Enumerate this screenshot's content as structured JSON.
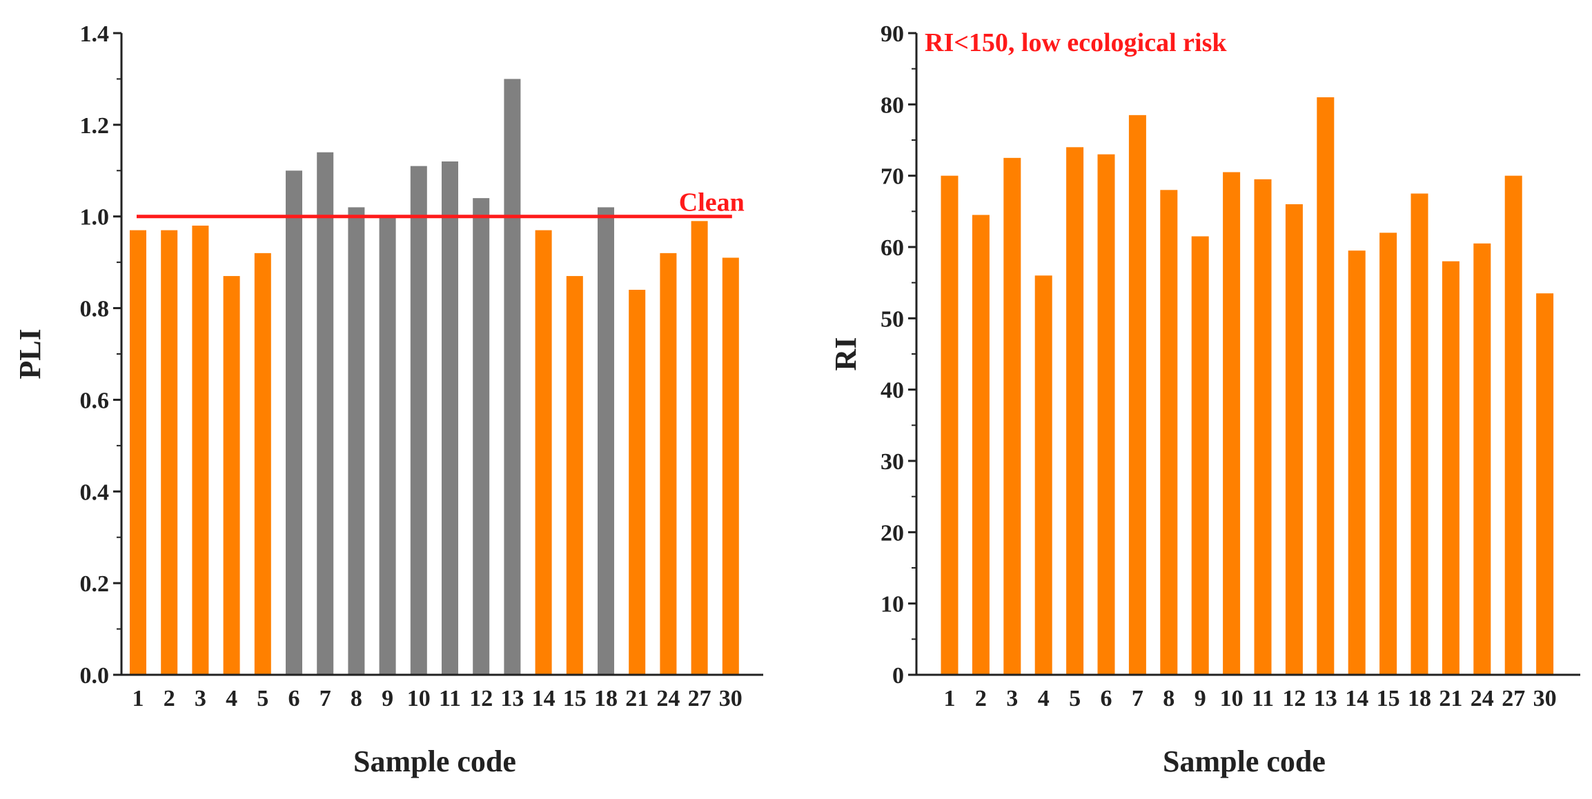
{
  "colors": {
    "below_threshold": "#ff8000",
    "above_threshold": "#808080",
    "reference_line": "#ff1a1a",
    "axis": "#222222"
  },
  "chart_data": [
    {
      "id": "pli",
      "type": "bar",
      "xlabel": "Sample code",
      "ylabel": "PLI",
      "ylim": [
        0,
        1.4
      ],
      "y_ticks": [
        "0.0",
        "0.2",
        "0.4",
        "0.6",
        "0.8",
        "1.0",
        "1.2",
        "1.4"
      ],
      "categories": [
        "1",
        "2",
        "3",
        "4",
        "5",
        "6",
        "7",
        "8",
        "9",
        "10",
        "11",
        "12",
        "13",
        "14",
        "15",
        "18",
        "21",
        "24",
        "27",
        "30"
      ],
      "values": [
        0.97,
        0.97,
        0.98,
        0.87,
        0.92,
        1.1,
        1.14,
        1.02,
        1.0,
        1.11,
        1.12,
        1.04,
        1.3,
        0.97,
        0.87,
        1.02,
        0.84,
        0.92,
        0.99,
        0.91
      ],
      "bar_classes": [
        "below",
        "below",
        "below",
        "below",
        "below",
        "above",
        "above",
        "above",
        "above",
        "above",
        "above",
        "above",
        "above",
        "below",
        "below",
        "above",
        "below",
        "below",
        "below",
        "below"
      ],
      "reference_line": {
        "value": 1.0,
        "label": "Clean"
      }
    },
    {
      "id": "ri",
      "type": "bar",
      "xlabel": "Sample code",
      "ylabel": "RI",
      "ylim": [
        0,
        90
      ],
      "y_ticks": [
        "0",
        "10",
        "20",
        "30",
        "40",
        "50",
        "60",
        "70",
        "80",
        "90"
      ],
      "categories": [
        "1",
        "2",
        "3",
        "4",
        "5",
        "6",
        "7",
        "8",
        "9",
        "10",
        "11",
        "12",
        "13",
        "14",
        "15",
        "18",
        "21",
        "24",
        "27",
        "30"
      ],
      "values": [
        70,
        64.5,
        72.5,
        56,
        74,
        73,
        78.5,
        68,
        61.5,
        70.5,
        69.5,
        66,
        81,
        59.5,
        62,
        67.5,
        58,
        60.5,
        70,
        53.5
      ],
      "annotation": "RI<150, low ecological risk"
    }
  ]
}
